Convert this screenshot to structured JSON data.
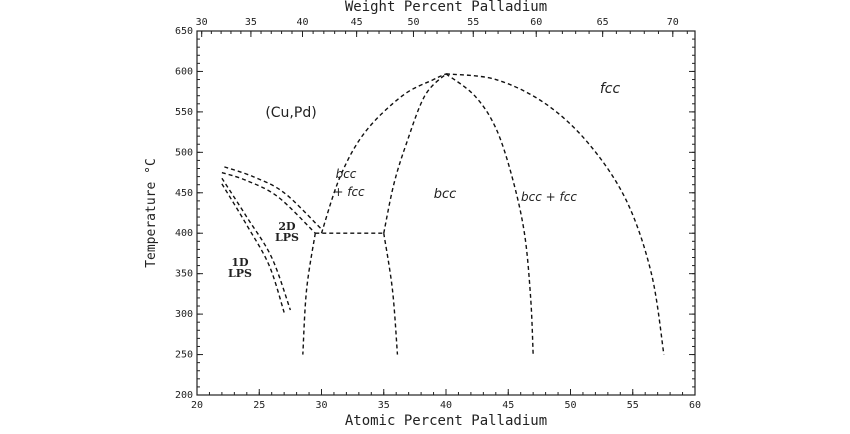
{
  "axes": {
    "top_title": "Weight Percent Palladium",
    "bottom_title": "Atomic Percent Palladium",
    "left_title": "Temperature °C",
    "top_ticks": [
      "30",
      "35",
      "40",
      "45",
      "50",
      "55",
      "60",
      "65",
      "70"
    ],
    "bottom_ticks": [
      "20",
      "25",
      "30",
      "35",
      "40",
      "45",
      "50",
      "55",
      "60"
    ],
    "left_ticks": [
      "200",
      "250",
      "300",
      "350",
      "400",
      "450",
      "500",
      "550",
      "600",
      "650"
    ],
    "x_range": [
      20,
      60
    ],
    "y_range": [
      200,
      650
    ]
  },
  "phase_labels": {
    "cupd": "(Cu,Pd)",
    "fcc": "fcc",
    "bcc_fcc_left_line1": "bcc",
    "bcc_fcc_left_line2": "+ fcc",
    "bcc": "bcc",
    "bcc_fcc_right": "bcc + fcc",
    "lps2d_line1": "2D",
    "lps2d_line2": "LPS",
    "lps1d_line1": "1D",
    "lps1d_line2": "LPS"
  },
  "phase_boundaries": [
    {
      "id": "fcc-outer-left",
      "points": [
        [
          30.0,
          400
        ],
        [
          31.5,
          470
        ],
        [
          33.5,
          525
        ],
        [
          36.5,
          570
        ],
        [
          39.0,
          590
        ],
        [
          40.0,
          597
        ]
      ]
    },
    {
      "id": "fcc-outer-right",
      "points": [
        [
          40.0,
          597
        ],
        [
          44.0,
          590
        ],
        [
          48.0,
          560
        ],
        [
          51.5,
          510
        ],
        [
          54.5,
          440
        ],
        [
          56.5,
          350
        ],
        [
          57.5,
          250
        ]
      ]
    },
    {
      "id": "bcc-left",
      "points": [
        [
          35.0,
          400
        ],
        [
          35.8,
          460
        ],
        [
          36.8,
          510
        ],
        [
          38.3,
          570
        ],
        [
          40.0,
          597
        ]
      ]
    },
    {
      "id": "bcc-right",
      "points": [
        [
          40.0,
          597
        ],
        [
          42.3,
          570
        ],
        [
          44.0,
          530
        ],
        [
          45.3,
          470
        ],
        [
          46.3,
          400
        ],
        [
          46.8,
          320
        ],
        [
          47.0,
          250
        ]
      ]
    },
    {
      "id": "bcc-left-low",
      "points": [
        [
          35.0,
          400
        ],
        [
          35.7,
          330
        ],
        [
          36.1,
          250
        ]
      ]
    },
    {
      "id": "eutectoid",
      "points": [
        [
          29.5,
          400
        ],
        [
          35.0,
          400
        ]
      ]
    },
    {
      "id": "fcc-left-low",
      "points": [
        [
          29.5,
          400
        ],
        [
          28.8,
          330
        ],
        [
          28.5,
          250
        ]
      ]
    },
    {
      "id": "lps-2d-a",
      "points": [
        [
          22.2,
          482
        ],
        [
          24.5,
          470
        ],
        [
          27.0,
          450
        ],
        [
          30.0,
          405
        ]
      ]
    },
    {
      "id": "lps-2d-b",
      "points": [
        [
          22.0,
          475
        ],
        [
          24.0,
          465
        ],
        [
          26.5,
          445
        ],
        [
          29.5,
          400
        ]
      ]
    },
    {
      "id": "lps-1d-a",
      "points": [
        [
          22.0,
          468
        ],
        [
          24.0,
          420
        ],
        [
          26.0,
          370
        ],
        [
          27.5,
          305
        ]
      ]
    },
    {
      "id": "lps-1d-b",
      "points": [
        [
          22.0,
          461
        ],
        [
          24.0,
          410
        ],
        [
          25.8,
          360
        ],
        [
          27.0,
          302
        ]
      ]
    }
  ]
}
